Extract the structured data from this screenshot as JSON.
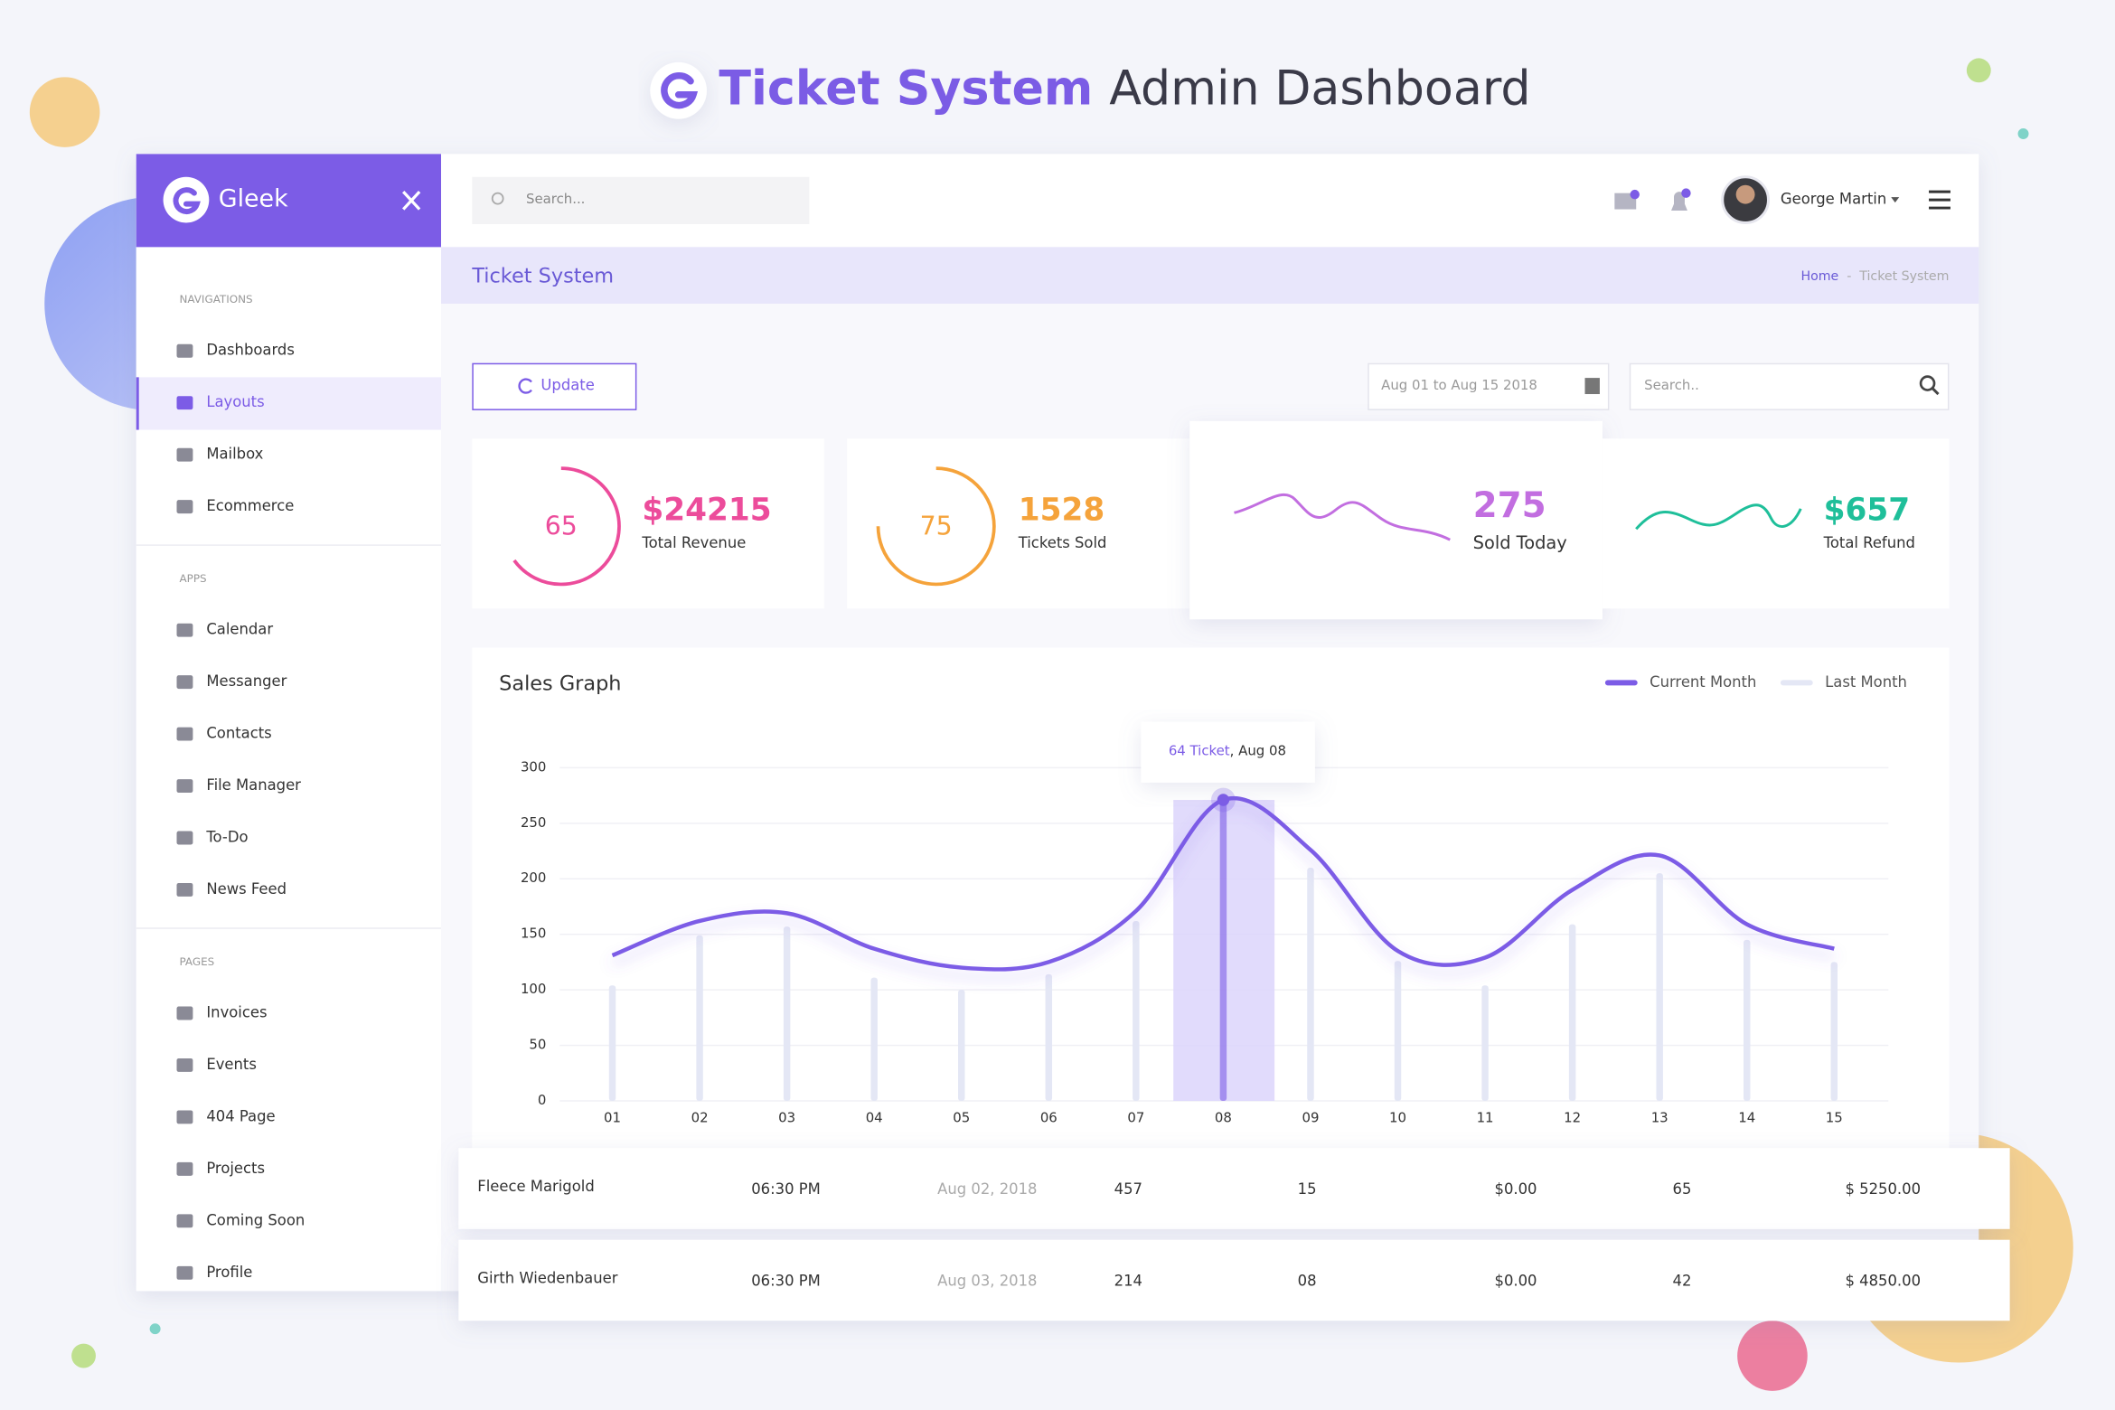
{
  "header": {
    "title_highlight": "Ticket System",
    "title_rest": "Admin Dashboard"
  },
  "sidebar": {
    "brand": "Gleek",
    "active": "Layouts",
    "sections": [
      {
        "heading": "NAVIGATIONS",
        "items": [
          "Dashboards",
          "Layouts",
          "Mailbox",
          "Ecommerce"
        ]
      },
      {
        "heading": "APPS",
        "items": [
          "Calendar",
          "Messanger",
          "Contacts",
          "File Manager",
          "To-Do",
          "News Feed"
        ]
      },
      {
        "heading": "PAGES",
        "items": [
          "Invoices",
          "Events",
          "404 Page",
          "Projects",
          "Coming Soon",
          "Profile"
        ]
      }
    ]
  },
  "topbar": {
    "search_placeholder": "Search...",
    "user": "George Martin"
  },
  "page": {
    "title": "Ticket System",
    "breadcrumb": [
      "Home",
      "-",
      "Ticket System"
    ]
  },
  "toolbar": {
    "button": "Update",
    "date_range": "Aug 01 to Aug 15 2018",
    "search_placeholder": "Search.."
  },
  "stats": [
    {
      "ring": 65,
      "value": "$24215",
      "label": "Total Revenue",
      "color": "#ec4c9b"
    },
    {
      "ring": 75,
      "value": "1528",
      "label": "Tickets Sold",
      "color": "#f5a33b"
    },
    {
      "value": "275",
      "label": "Sold Today",
      "color": "#c26ee0"
    },
    {
      "value": "$657",
      "label": "Total Refund",
      "color": "#1fbf9a"
    }
  ],
  "sales_graph": {
    "type": "line",
    "title": "Sales Graph",
    "categories": [
      "01",
      "02",
      "03",
      "04",
      "05",
      "06",
      "07",
      "08",
      "09",
      "10",
      "11",
      "12",
      "13",
      "14",
      "15"
    ],
    "series": [
      {
        "name": "Current Month",
        "type": "line",
        "color": "#7c5ce6",
        "values": [
          131,
          162,
          169,
          137,
          120,
          125,
          171,
          271,
          226,
          135,
          129,
          190,
          221,
          159,
          137
        ]
      },
      {
        "name": "Last Month",
        "type": "bar",
        "color": "#e4e7f5",
        "values": [
          104,
          149,
          157,
          111,
          100,
          114,
          162,
          270,
          210,
          126,
          104,
          159,
          205,
          145,
          125
        ]
      }
    ],
    "ylim": [
      0,
      300
    ],
    "yticks": [
      0,
      50,
      100,
      150,
      200,
      250,
      300
    ],
    "grid": true,
    "highlight_category": "08",
    "tooltip": {
      "highlight": "64 Ticket",
      "rest": ", Aug 08"
    }
  },
  "table": {
    "rows": [
      [
        "Fleece Marigold",
        "06:30 PM",
        "Aug 02, 2018",
        "457",
        "15",
        "$0.00",
        "65",
        "$ 5250.00"
      ],
      [
        "Girth Wiedenbauer",
        "06:30 PM",
        "Aug 03, 2018",
        "214",
        "08",
        "$0.00",
        "42",
        "$ 4850.00"
      ]
    ]
  }
}
